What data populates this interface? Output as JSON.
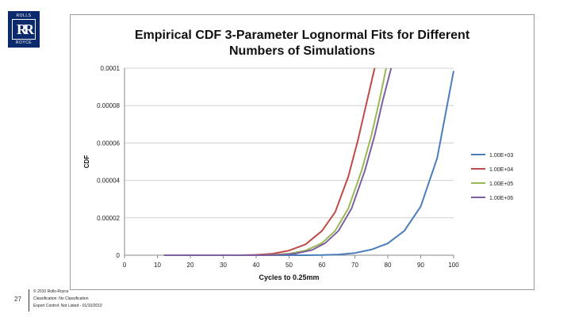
{
  "logo": {
    "top_text": "ROLLS",
    "monogram": "RR",
    "bottom_text": "ROYCE"
  },
  "footer": {
    "page_number": "27",
    "lines": [
      "© 2010 Rolls-Royce",
      "Classification: No Classification",
      "Export Control: Not Listed - 01/10/2010"
    ]
  },
  "chart_data": {
    "type": "line",
    "title": [
      "Empirical CDF 3-Parameter Lognormal Fits for Different",
      "Numbers of Simulations"
    ],
    "xlabel": "Cycles to 0.25mm",
    "ylabel": "CDF",
    "xlim": [
      0,
      100
    ],
    "ylim": [
      0,
      0.0001
    ],
    "x_ticks": [
      "0",
      "10",
      "20",
      "30",
      "40",
      "50",
      "60",
      "70",
      "80",
      "90",
      "100"
    ],
    "y_ticks": [
      "0",
      "0.00002",
      "0.00004",
      "0.00006",
      "0.00008",
      "0.0001"
    ],
    "grid": "horizontal",
    "legend": "right",
    "series": [
      {
        "name": "1.00E+03",
        "color": "#4a7ebb",
        "x": [
          12,
          40,
          55,
          60,
          65,
          70,
          75,
          80,
          85,
          90,
          95,
          100
        ],
        "y": [
          0,
          0,
          0,
          1e-07,
          4e-07,
          1.2e-06,
          3e-06,
          6.3e-06,
          1.3e-05,
          2.6e-05,
          5.2e-05,
          9.85e-05
        ]
      },
      {
        "name": "1.00E+04",
        "color": "#be4b48",
        "x": [
          12,
          35,
          40,
          45,
          50,
          55,
          60,
          64,
          68,
          71,
          73.5,
          76
        ],
        "y": [
          0,
          0,
          2e-07,
          8e-07,
          2.5e-06,
          5.8e-06,
          1.3e-05,
          2.3e-05,
          4.2e-05,
          6.2e-05,
          8.1e-05,
          0.0001
        ]
      },
      {
        "name": "1.00E+05",
        "color": "#98b954",
        "x": [
          12,
          40,
          45,
          50,
          55,
          60,
          64,
          68,
          72,
          75,
          77.5,
          79.5
        ],
        "y": [
          0,
          0,
          2e-07,
          8e-07,
          2.5e-06,
          6.5e-06,
          1.3e-05,
          2.5e-05,
          4.5e-05,
          6.4e-05,
          8.3e-05,
          0.0001
        ]
      },
      {
        "name": "1.00E+06",
        "color": "#7d5fa0",
        "x": [
          12,
          42,
          47,
          52,
          57,
          61,
          65,
          69,
          73,
          76,
          78.5,
          81
        ],
        "y": [
          0,
          0,
          2e-07,
          9e-07,
          2.8e-06,
          6.5e-06,
          1.3e-05,
          2.5e-05,
          4.5e-05,
          6.4e-05,
          8.3e-05,
          0.0001
        ]
      }
    ]
  }
}
